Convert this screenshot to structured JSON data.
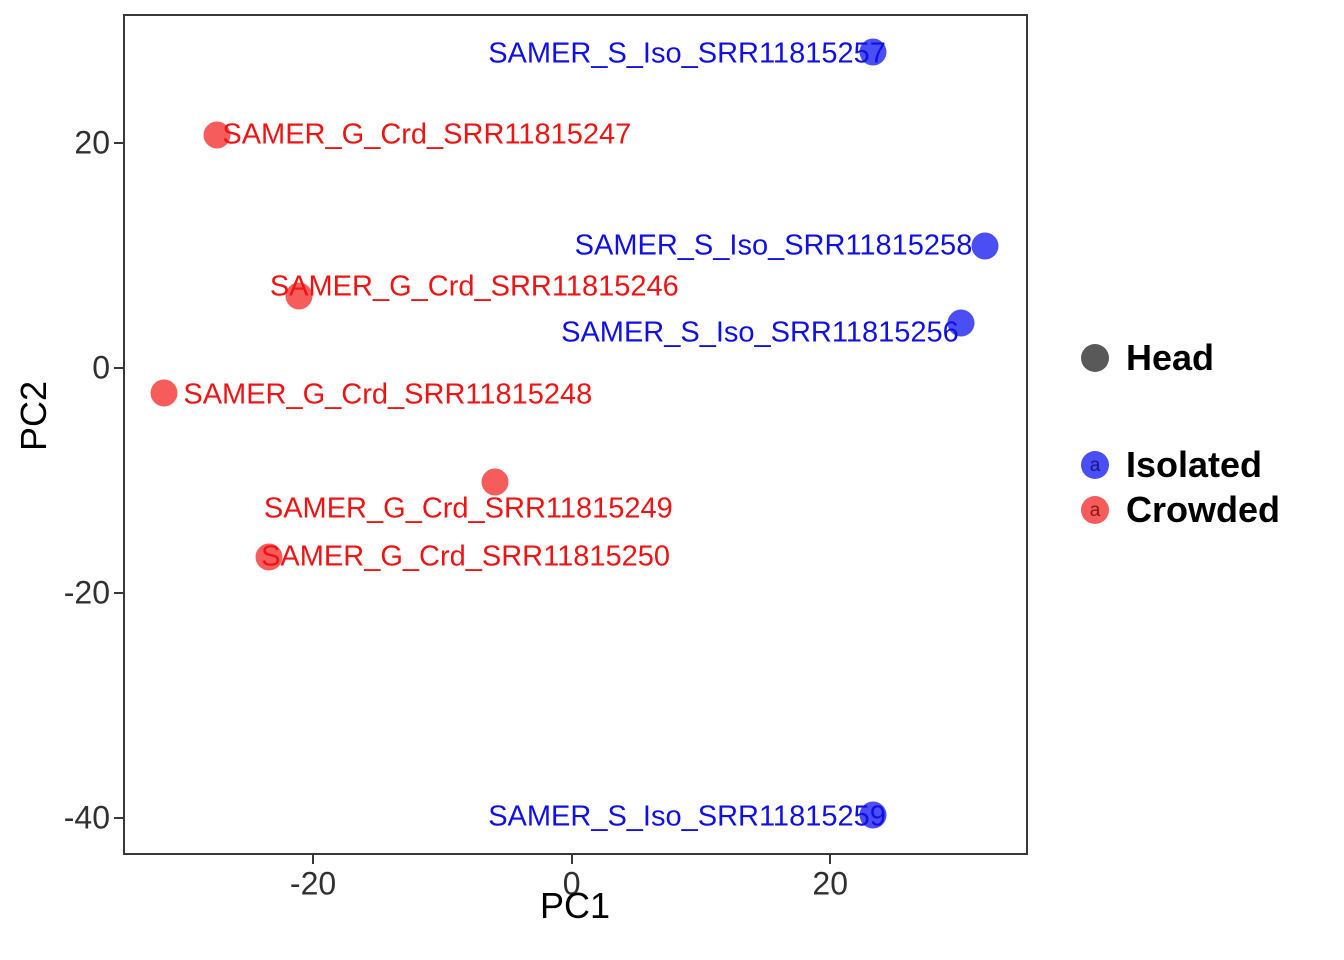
{
  "chart_data": {
    "type": "scatter",
    "title": "",
    "xlabel": "PC1",
    "ylabel": "PC2",
    "xlim": [
      -34.7,
      35.3
    ],
    "ylim": [
      -43.3,
      31.5
    ],
    "x_ticks": [
      -20,
      0,
      20
    ],
    "y_ticks": [
      20,
      0,
      -20,
      -40
    ],
    "grid": false,
    "legend_position": "right",
    "series": [
      {
        "name": "Isolated",
        "point_color": "#4b4ef2",
        "label_color": "#0f0fe8",
        "points": [
          {
            "label": "SAMER_S_Iso_SRR11815257",
            "x": 23.3,
            "y": 28.1,
            "anchor": "end",
            "dx": 13,
            "dy": 2
          },
          {
            "label": "SAMER_S_Iso_SRR11815258",
            "x": 32.0,
            "y": 10.9,
            "anchor": "end",
            "dx": -13,
            "dy": 0
          },
          {
            "label": "SAMER_S_Iso_SRR11815256",
            "x": 30.1,
            "y": 4.0,
            "anchor": "end",
            "dx": -2,
            "dy": 10
          },
          {
            "label": "SAMER_S_Iso_SRR11815259",
            "x": 23.3,
            "y": -39.7,
            "anchor": "end",
            "dx": 13,
            "dy": 2
          }
        ]
      },
      {
        "name": "Crowded",
        "point_color": "#f75c5c",
        "label_color": "#ef1313",
        "points": [
          {
            "label": "SAMER_G_Crd_SRR11815247",
            "x": -27.4,
            "y": 20.7,
            "anchor": "start",
            "dx": 5,
            "dy": 0
          },
          {
            "label": "SAMER_G_Crd_SRR11815246",
            "x": -21.1,
            "y": 6.4,
            "anchor": "start",
            "dx": -29,
            "dy": -9
          },
          {
            "label": "SAMER_G_Crd_SRR11815248",
            "x": -31.5,
            "y": -2.2,
            "anchor": "start",
            "dx": 19,
            "dy": 2
          },
          {
            "label": "SAMER_G_Crd_SRR11815249",
            "x": -5.9,
            "y": -10.1,
            "anchor": "middle",
            "dx": -27,
            "dy": 27
          },
          {
            "label": "SAMER_G_Crd_SRR11815250",
            "x": -23.4,
            "y": -16.8,
            "anchor": "start",
            "dx": -8,
            "dy": 0
          }
        ]
      }
    ]
  },
  "legend": {
    "entries": [
      {
        "label": "Head",
        "color": "#595959",
        "key_text": ""
      },
      {
        "label": "Isolated",
        "color": "#4b4ef2",
        "key_text": "a",
        "key_text_color": "#15158a"
      },
      {
        "label": "Crowded",
        "color": "#f75c5c",
        "key_text": "a",
        "key_text_color": "#8a1515"
      }
    ]
  }
}
